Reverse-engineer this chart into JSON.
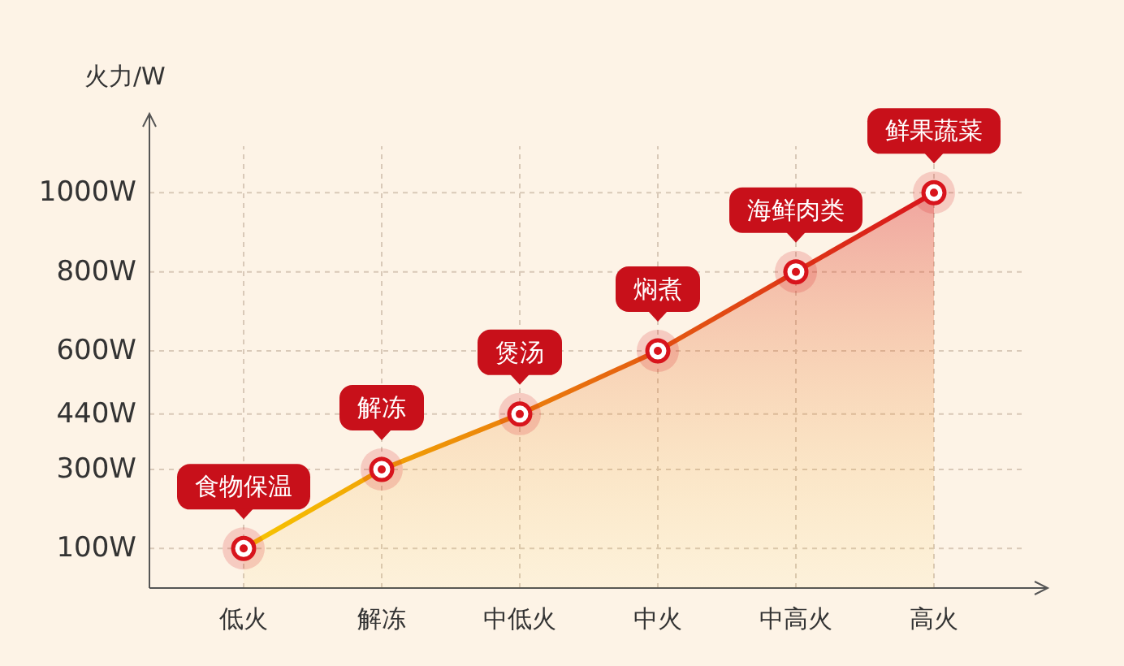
{
  "chart_data": {
    "type": "area",
    "ylabel": "火力/W",
    "categories": [
      "低火",
      "解冻",
      "中低火",
      "中火",
      "中高火",
      "高火"
    ],
    "series": [
      {
        "color": "#d8141c",
        "values": [
          100,
          300,
          440,
          600,
          800,
          1000
        ]
      }
    ],
    "ylim": [
      0,
      1200
    ],
    "yticks": [
      {
        "value": 100,
        "label": "100W"
      },
      {
        "value": 300,
        "label": "300W"
      },
      {
        "value": 440,
        "label": "440W"
      },
      {
        "value": 600,
        "label": "600W"
      },
      {
        "value": 800,
        "label": "800W"
      },
      {
        "value": 1000,
        "label": "1000W"
      }
    ],
    "annotations": [
      {
        "text": "食物保温",
        "x": "低火",
        "y": 100
      },
      {
        "text": "解冻",
        "x": "解冻",
        "y": 300
      },
      {
        "text": "煲汤",
        "x": "中低火",
        "y": 440
      },
      {
        "text": "焖煮",
        "x": "中火",
        "y": 600
      },
      {
        "text": "海鲜肉类",
        "x": "中高火",
        "y": 800
      },
      {
        "text": "鲜果蔬菜",
        "x": "高火",
        "y": 1000
      }
    ],
    "grid": true,
    "marker": "circle"
  }
}
